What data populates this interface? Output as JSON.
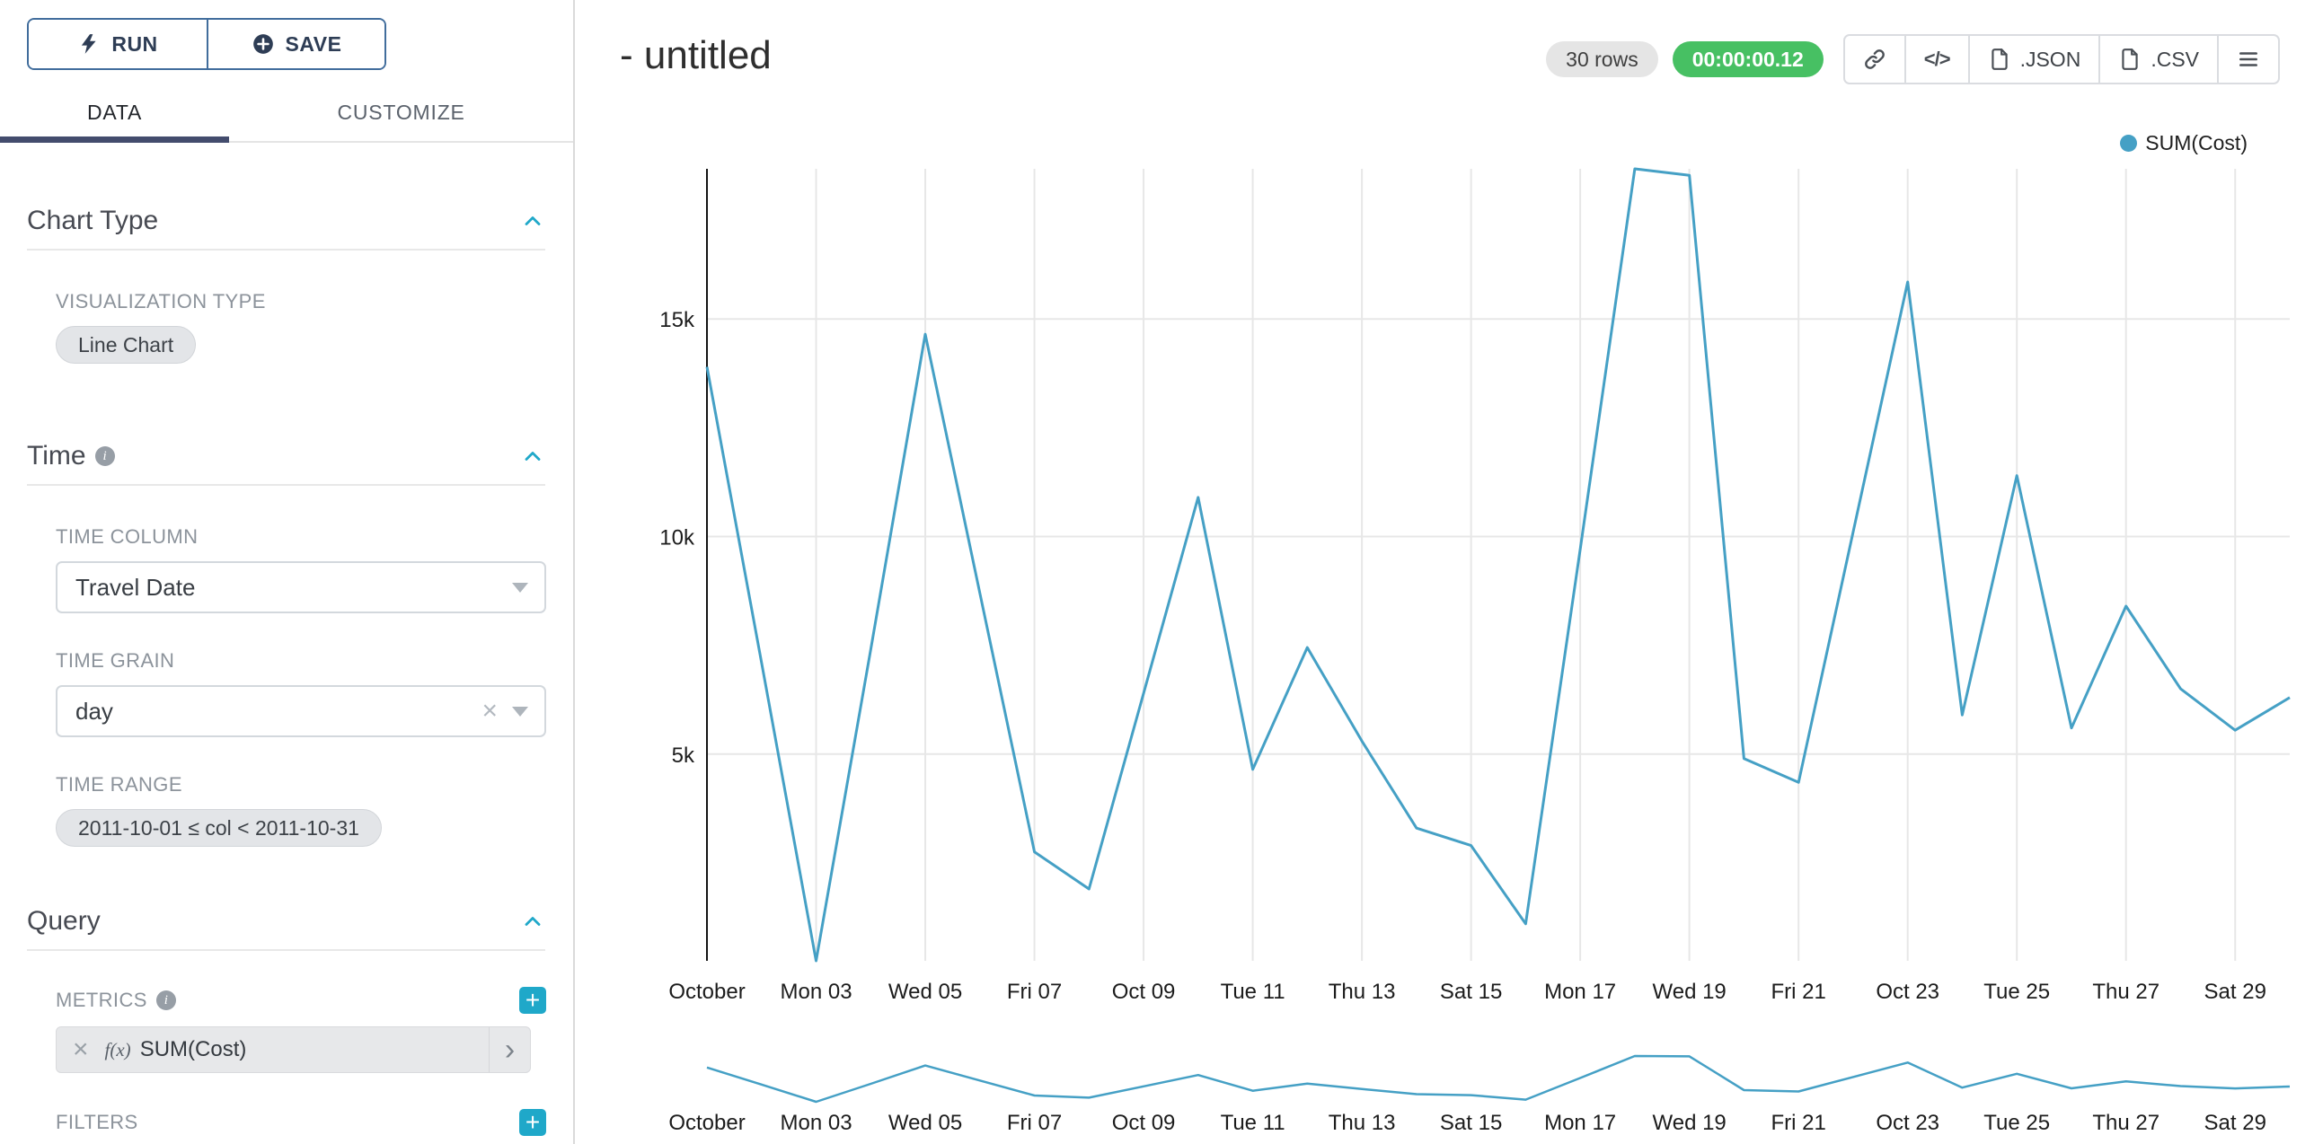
{
  "colors": {
    "accent_teal": "#1fa8c9",
    "line": "#45a0c5",
    "timer_green": "#47c063",
    "tab_underline": "#434c6d",
    "run_save_border": "#416d9c"
  },
  "icons": {
    "plus": "+",
    "clear": "×",
    "chevron_right": "›",
    "info": "i",
    "code": "</>"
  },
  "sidebar": {
    "run_label": "RUN",
    "save_label": "SAVE",
    "tabs": [
      {
        "label": "DATA"
      },
      {
        "label": "CUSTOMIZE"
      }
    ],
    "sections": {
      "chart_type": {
        "title": "Chart Type",
        "visualization_type_label": "VISUALIZATION TYPE",
        "visualization_type_value": "Line Chart"
      },
      "time": {
        "title": "Time",
        "time_column_label": "TIME COLUMN",
        "time_column_value": "Travel Date",
        "time_grain_label": "TIME GRAIN",
        "time_grain_value": "day",
        "time_range_label": "TIME RANGE",
        "time_range_value": "2011-10-01 ≤ col < 2011-10-31"
      },
      "query": {
        "title": "Query",
        "metrics_label": "METRICS",
        "metric_fx": "f(x)",
        "metric_value": "SUM(Cost)",
        "filters_label": "FILTERS"
      }
    }
  },
  "header": {
    "title": "- untitled",
    "rows_badge": "30 rows",
    "timer_badge": "00:00:00.12",
    "export_json_label": ".JSON",
    "export_csv_label": ".CSV"
  },
  "chart_data": {
    "type": "line",
    "title": "",
    "xlabel": "",
    "ylabel": "",
    "grid": true,
    "legend_position": "top-right",
    "has_brush_minimap": true,
    "x": [
      "2011-10-01",
      "2011-10-02",
      "2011-10-03",
      "2011-10-04",
      "2011-10-05",
      "2011-10-06",
      "2011-10-07",
      "2011-10-08",
      "2011-10-09",
      "2011-10-10",
      "2011-10-11",
      "2011-10-12",
      "2011-10-13",
      "2011-10-14",
      "2011-10-15",
      "2011-10-16",
      "2011-10-17",
      "2011-10-18",
      "2011-10-19",
      "2011-10-20",
      "2011-10-21",
      "2011-10-22",
      "2011-10-23",
      "2011-10-24",
      "2011-10-25",
      "2011-10-26",
      "2011-10-27",
      "2011-10-28",
      "2011-10-29",
      "2011-10-30"
    ],
    "series": [
      {
        "name": "SUM(Cost)",
        "color": "#45a0c5",
        "values": [
          13900,
          7100,
          250,
          7400,
          14650,
          8700,
          2750,
          1900,
          6400,
          10900,
          4650,
          7450,
          5300,
          3300,
          2900,
          1100,
          9700,
          18450,
          18300,
          4900,
          4350,
          10100,
          15850,
          5900,
          11400,
          5600,
          8400,
          6500,
          5550,
          6300
        ]
      }
    ],
    "tick_every": 2,
    "x_tick_labels": [
      "October",
      "Mon 03",
      "Wed 05",
      "Fri 07",
      "Oct 09",
      "Tue 11",
      "Thu 13",
      "Sat 15",
      "Mon 17",
      "Wed 19",
      "Fri 21",
      "Oct 23",
      "Tue 25",
      "Thu 27",
      "Sat 29"
    ],
    "y_ticks": [
      15000,
      10000,
      5000
    ],
    "y_tick_labels": [
      "15k",
      "10k",
      "5k"
    ],
    "ylim": [
      250,
      18450
    ]
  }
}
